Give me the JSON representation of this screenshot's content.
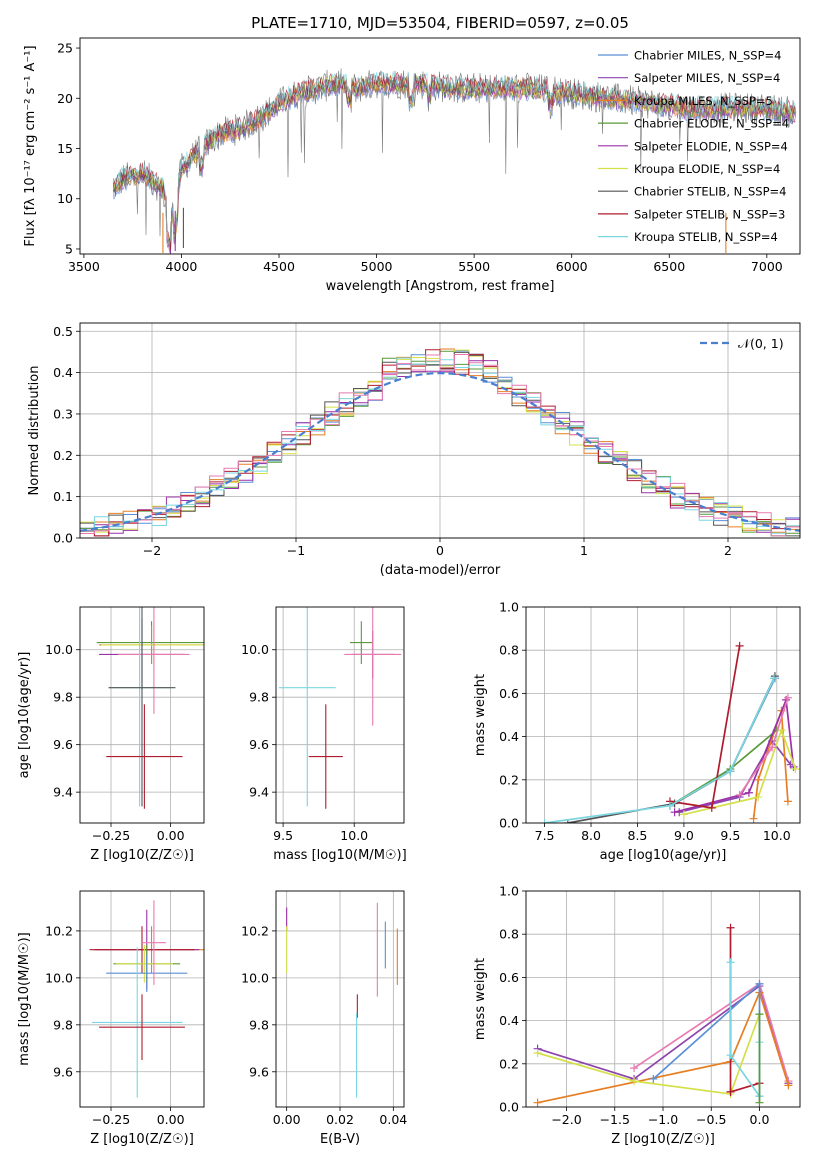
{
  "figure_title": "PLATE=1710, MJD=53504, FIBERID=0597, z=0.05",
  "colors": {
    "c0": "#5b8fd6",
    "c1": "#8e44ad",
    "c2": "#e67e22",
    "c3": "#5a9a3a",
    "c4": "#9b30a8",
    "c5": "#d4e048",
    "c6": "#555555",
    "c7": "#b01c2e",
    "c8": "#7ad6e0",
    "c9": "#e87ab0"
  },
  "chart_data": [
    {
      "id": "spectrum",
      "type": "line",
      "title": "PLATE=1710, MJD=53504, FIBERID=0597, z=0.05",
      "xlabel": "wavelength [Angstrom, rest frame]",
      "ylabel": "Flux [fλ 10⁻¹⁷ erg cm⁻² s⁻¹ A⁻¹]",
      "xlim": [
        3480,
        7170
      ],
      "ylim": [
        4.5,
        26
      ],
      "xticks": [
        3500,
        4000,
        4500,
        5000,
        5500,
        6000,
        6500,
        7000
      ],
      "yticks": [
        5,
        10,
        15,
        20,
        25
      ],
      "data_anchors": {
        "x": [
          3650,
          3700,
          3800,
          3900,
          3950,
          4000,
          4100,
          4200,
          4300,
          4400,
          4500,
          4600,
          4700,
          4800,
          4900,
          5000,
          5200,
          5400,
          5600,
          5800,
          6000,
          6200,
          6400,
          6600,
          6800,
          7000,
          7150
        ],
        "y": [
          11.0,
          12.0,
          12.5,
          11.0,
          8.0,
          13.0,
          15.0,
          16.5,
          17.0,
          18.0,
          19.5,
          20.5,
          21.0,
          21.5,
          21.0,
          21.5,
          21.5,
          21.0,
          21.0,
          21.0,
          20.5,
          20.0,
          19.5,
          19.0,
          19.0,
          19.0,
          18.5
        ]
      },
      "legend": [
        {
          "label": "Chabrier MILES, N_SSP=4",
          "color": "#5b8fd6"
        },
        {
          "label": "Salpeter MILES, N_SSP=4",
          "color": "#8e44ad"
        },
        {
          "label": "Kroupa MILES, N_SSP=5",
          "color": "#e67e22"
        },
        {
          "label": "Chabrier ELODIE, N_SSP=4",
          "color": "#5a9a3a"
        },
        {
          "label": "Salpeter ELODIE, N_SSP=4",
          "color": "#9b30a8"
        },
        {
          "label": "Kroupa ELODIE, N_SSP=4",
          "color": "#d4e048"
        },
        {
          "label": "Chabrier STELIB, N_SSP=4",
          "color": "#555555"
        },
        {
          "label": "Salpeter STELIB, N_SSP=3",
          "color": "#b01c2e"
        },
        {
          "label": "Kroupa STELIB, N_SSP=4",
          "color": "#7ad6e0"
        }
      ]
    },
    {
      "id": "residuals",
      "type": "line",
      "xlabel": "(data-model)/error",
      "ylabel": "Normed distribution",
      "xlim": [
        -2.5,
        2.5
      ],
      "ylim": [
        0,
        0.52
      ],
      "xticks": [
        -2,
        -1,
        0,
        1,
        2
      ],
      "xticklabels": [
        "−2",
        "−1",
        "0",
        "1",
        "2"
      ],
      "yticks": [
        0.0,
        0.1,
        0.2,
        0.3,
        0.4,
        0.5
      ],
      "yticklabels": [
        "0.0",
        "0.1",
        "0.2",
        "0.3",
        "0.4",
        "0.5"
      ],
      "legend": [
        {
          "label": "𝒩(0, 1)",
          "color": "#4a7fd0"
        }
      ],
      "bin_width": 0.1
    },
    {
      "id": "z_age",
      "type": "scatter",
      "xlabel": "Z [log10(Z/Z☉)]",
      "ylabel": "age  [log10(age/yr)]",
      "xlim": [
        -0.38,
        0.14
      ],
      "ylim": [
        9.27,
        10.18
      ],
      "xticks": [
        -0.25,
        0.0
      ],
      "xticklabels": [
        "−0.25",
        "0.00"
      ],
      "yticks": [
        9.4,
        9.6,
        9.8,
        10.0
      ],
      "yticklabels": [
        "9.4",
        "9.6",
        "9.8",
        "10.0"
      ],
      "points": [
        {
          "x": -0.08,
          "y": 10.03,
          "xerr": 0.23,
          "yerr": 0.09,
          "color": "#5a9a3a"
        },
        {
          "x": -0.08,
          "y": 10.02,
          "xerr": 0.22,
          "yerr": 0.08,
          "color": "#e67e22"
        },
        {
          "x": -0.07,
          "y": 10.02,
          "xerr": 0.22,
          "yerr": 0.09,
          "color": "#d4e048"
        },
        {
          "x": -0.12,
          "y": 9.98,
          "xerr": 0.18,
          "yerr": 0.15,
          "color": "#9b30a8"
        },
        {
          "x": -0.07,
          "y": 9.98,
          "xerr": 0.15,
          "yerr": 0.25,
          "color": "#e87ab0"
        },
        {
          "x": -0.13,
          "y": 9.84,
          "xerr": 0.13,
          "yerr": 0.5,
          "color": "#7ad6e0"
        },
        {
          "x": -0.12,
          "y": 9.84,
          "xerr": 0.14,
          "yerr": 0.5,
          "color": "#555555"
        },
        {
          "x": -0.11,
          "y": 9.55,
          "xerr": 0.16,
          "yerr": 0.22,
          "color": "#b01c2e"
        }
      ]
    },
    {
      "id": "mass_age",
      "type": "scatter",
      "xlabel": "mass [log10(M/M☉)]",
      "ylabel": "",
      "xlim": [
        9.45,
        10.35
      ],
      "ylim": [
        9.27,
        10.18
      ],
      "xticks": [
        9.5,
        10.0
      ],
      "xticklabels": [
        "9.5",
        "10.0"
      ],
      "yticks": [
        9.4,
        9.6,
        9.8,
        10.0
      ],
      "yticklabels": [
        "9.4",
        "9.6",
        "9.8",
        "10.0"
      ],
      "points": [
        {
          "x": 10.05,
          "y": 10.03,
          "xerr": 0.08,
          "yerr": 0.09,
          "color": "#5a9a3a"
        },
        {
          "x": 10.13,
          "y": 9.98,
          "xerr": 0.15,
          "yerr": 0.1,
          "color": "#9b30a8"
        },
        {
          "x": 10.13,
          "y": 9.98,
          "xerr": 0.2,
          "yerr": 0.3,
          "color": "#e87ab0"
        },
        {
          "x": 9.67,
          "y": 9.84,
          "xerr": 0.2,
          "yerr": 0.5,
          "color": "#7ad6e0"
        },
        {
          "x": 9.8,
          "y": 9.55,
          "xerr": 0.12,
          "yerr": 0.22,
          "color": "#b01c2e"
        }
      ]
    },
    {
      "id": "age_weight",
      "type": "line",
      "xlabel": "age  [log10(age/yr)]",
      "ylabel": "mass weight",
      "xlim": [
        7.3,
        10.25
      ],
      "ylim": [
        0.0,
        1.0
      ],
      "xticks": [
        7.5,
        8.0,
        8.5,
        9.0,
        9.5,
        10.0
      ],
      "xticklabels": [
        "7.5",
        "8.0",
        "8.5",
        "9.0",
        "9.5",
        "10.0"
      ],
      "yticks": [
        0.0,
        0.2,
        0.4,
        0.6,
        0.8,
        1.0
      ],
      "yticklabels": [
        "0.0",
        "0.2",
        "0.4",
        "0.6",
        "0.8",
        "1.0"
      ],
      "series": [
        {
          "color": "#5b8fd6",
          "x": [
            8.85,
            9.5,
            9.98
          ],
          "y": [
            0.08,
            0.24,
            0.67
          ]
        },
        {
          "color": "#8e44ad",
          "x": [
            8.95,
            9.6,
            9.95,
            10.15
          ],
          "y": [
            0.05,
            0.12,
            0.38,
            0.27
          ]
        },
        {
          "color": "#e67e22",
          "x": [
            9.75,
            9.8,
            10.05,
            10.12
          ],
          "y": [
            0.02,
            0.2,
            0.52,
            0.1
          ]
        },
        {
          "color": "#5a9a3a",
          "x": [
            8.85,
            9.5,
            10.0
          ],
          "y": [
            0.08,
            0.25,
            0.43
          ]
        },
        {
          "color": "#9b30a8",
          "x": [
            8.9,
            9.7,
            10.1,
            10.18
          ],
          "y": [
            0.05,
            0.14,
            0.57,
            0.26
          ]
        },
        {
          "color": "#d4e048",
          "x": [
            9.0,
            9.8,
            10.05,
            10.2
          ],
          "y": [
            0.04,
            0.12,
            0.43,
            0.25
          ]
        },
        {
          "color": "#555555",
          "x": [
            7.75,
            8.9,
            9.5,
            9.98
          ],
          "y": [
            0.0,
            0.09,
            0.24,
            0.68
          ]
        },
        {
          "color": "#b01c2e",
          "x": [
            8.85,
            9.3,
            9.6
          ],
          "y": [
            0.1,
            0.07,
            0.82
          ]
        },
        {
          "color": "#7ad6e0",
          "x": [
            7.5,
            8.85,
            9.5,
            9.97
          ],
          "y": [
            0.0,
            0.08,
            0.24,
            0.67
          ]
        },
        {
          "color": "#e87ab0",
          "x": [
            9.6,
            9.95,
            10.12
          ],
          "y": [
            0.13,
            0.35,
            0.58
          ]
        }
      ]
    },
    {
      "id": "z_mass",
      "type": "scatter",
      "xlabel": "Z [log10(Z/Z☉)]",
      "ylabel": "mass [log10(M/M☉)]",
      "xlim": [
        -0.38,
        0.14
      ],
      "ylim": [
        9.45,
        10.37
      ],
      "xticks": [
        -0.25,
        0.0
      ],
      "xticklabels": [
        "−0.25",
        "0.00"
      ],
      "yticks": [
        9.6,
        9.8,
        10.0,
        10.2
      ],
      "yticklabels": [
        "9.6",
        "9.8",
        "10.0",
        "10.2"
      ],
      "points": [
        {
          "x": -0.08,
          "y": 10.12,
          "xerr": 0.23,
          "yerr": 0.1,
          "color": "#e67e22"
        },
        {
          "x": -0.1,
          "y": 10.12,
          "xerr": 0.22,
          "yerr": 0.17,
          "color": "#9b30a8"
        },
        {
          "x": -0.12,
          "y": 10.12,
          "xerr": 0.22,
          "yerr": 0.1,
          "color": "#b01c2e"
        },
        {
          "x": -0.1,
          "y": 10.06,
          "xerr": 0.14,
          "yerr": 0.08,
          "color": "#5a9a3a"
        },
        {
          "x": -0.11,
          "y": 10.06,
          "xerr": 0.12,
          "yerr": 0.08,
          "color": "#d4e048"
        },
        {
          "x": -0.1,
          "y": 10.02,
          "xerr": 0.17,
          "yerr": 0.08,
          "color": "#5b8fd6"
        },
        {
          "x": -0.07,
          "y": 10.15,
          "xerr": 0.05,
          "yerr": 0.18,
          "color": "#e87ab0"
        },
        {
          "x": -0.14,
          "y": 9.81,
          "xerr": 0.19,
          "yerr": 0.32,
          "color": "#7ad6e0"
        },
        {
          "x": -0.12,
          "y": 9.79,
          "xerr": 0.18,
          "yerr": 0.14,
          "color": "#b01c2e"
        }
      ]
    },
    {
      "id": "ebv_mass",
      "type": "scatter",
      "xlabel": "E(B-V)",
      "ylabel": "",
      "xlim": [
        -0.004,
        0.044
      ],
      "ylim": [
        9.45,
        10.37
      ],
      "xticks": [
        0.0,
        0.02,
        0.04
      ],
      "xticklabels": [
        "0.00",
        "0.02",
        "0.04"
      ],
      "yticks": [
        9.6,
        9.8,
        10.0,
        10.2
      ],
      "yticklabels": [
        "9.6",
        "9.8",
        "10.0",
        "10.2"
      ],
      "points": [
        {
          "x": 0.0,
          "y": 10.25,
          "xerr": 0,
          "yerr": 0.05,
          "color": "#9b30a8"
        },
        {
          "x": 0.0,
          "y": 10.12,
          "xerr": 0,
          "yerr": 0.1,
          "color": "#d4e048"
        },
        {
          "x": 0.0265,
          "y": 9.88,
          "xerr": 0,
          "yerr": 0.05,
          "color": "#b01c2e"
        },
        {
          "x": 0.0262,
          "y": 9.67,
          "xerr": 0,
          "yerr": 0.18,
          "color": "#7ad6e0"
        },
        {
          "x": 0.034,
          "y": 10.12,
          "xerr": 0,
          "yerr": 0.2,
          "color": "#e87ab0"
        },
        {
          "x": 0.037,
          "y": 10.14,
          "xerr": 0,
          "yerr": 0.1,
          "color": "#5b8fd6"
        },
        {
          "x": 0.0415,
          "y": 10.09,
          "xerr": 0,
          "yerr": 0.12,
          "color": "#e67e22"
        }
      ]
    },
    {
      "id": "z_weight",
      "type": "line",
      "xlabel": "Z [log10(Z/Z☉)]",
      "ylabel": "mass weight",
      "xlim": [
        -2.42,
        0.42
      ],
      "ylim": [
        0.0,
        1.0
      ],
      "xticks": [
        -2.0,
        -1.5,
        -1.0,
        -0.5,
        0.0
      ],
      "xticklabels": [
        "−2.0",
        "−1.5",
        "−1.0",
        "−0.5",
        "0.0"
      ],
      "yticks": [
        0.0,
        0.2,
        0.4,
        0.6,
        0.8,
        1.0
      ],
      "yticklabels": [
        "0.0",
        "0.2",
        "0.4",
        "0.6",
        "0.8",
        "1.0"
      ],
      "series": [
        {
          "color": "#8e44ad",
          "x": [
            -2.3,
            -1.3,
            0.0,
            0.3
          ],
          "y": [
            0.27,
            0.13,
            0.56,
            0.11
          ]
        },
        {
          "color": "#e87ab0",
          "x": [
            -1.3,
            0.0,
            0.3
          ],
          "y": [
            0.18,
            0.57,
            0.12
          ]
        },
        {
          "color": "#e67e22",
          "x": [
            -2.3,
            -0.3,
            0.0,
            0.3
          ],
          "y": [
            0.02,
            0.21,
            0.53,
            0.1
          ]
        },
        {
          "color": "#d4e048",
          "x": [
            -2.3,
            -1.3,
            -0.3,
            0.0
          ],
          "y": [
            0.25,
            0.12,
            0.06,
            0.43
          ]
        },
        {
          "color": "#5b8fd6",
          "x": [
            -1.1,
            0.0,
            0.0
          ],
          "y": [
            0.13,
            0.57,
            0.05
          ]
        },
        {
          "color": "#b01c2e",
          "x": [
            -0.3,
            -0.3,
            0.0,
            -0.3
          ],
          "y": [
            0.83,
            0.07,
            0.11,
            0.07
          ]
        },
        {
          "color": "#7ad6e0",
          "x": [
            -0.3,
            -0.3,
            0.0,
            0.0
          ],
          "y": [
            0.67,
            0.24,
            0.05,
            0.3
          ]
        },
        {
          "color": "#5a9a3a",
          "x": [
            0.0,
            0.0
          ],
          "y": [
            0.43,
            0.02
          ]
        }
      ]
    }
  ]
}
